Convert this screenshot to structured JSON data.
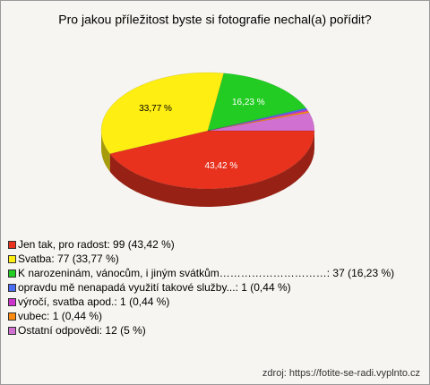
{
  "chart_data": {
    "type": "pie",
    "title": "Pro jakou příležitost byste si fotografie nechal(a) pořídit?",
    "categories": [
      "Jen tak, pro radost: 99 (43,42 %)",
      "Svatba: 77 (33,77 %)",
      "K narozeninám, vánocům, i jiným svátkům…………………………: 37 (16,23 %)",
      "opravdu mě nenapadá využití takové služby...: 1 (0,44 %)",
      "výročí, svatba apod.: 1 (0,44 %)",
      "vubec: 1 (0,44 %)",
      "Ostatní odpovědi: 12 (5 %)"
    ],
    "values": [
      43.42,
      33.77,
      16.23,
      0.44,
      0.44,
      0.44,
      5
    ],
    "value_labels": [
      "43,42 %",
      "33,77 %",
      "16,23 %",
      null,
      null,
      null,
      null
    ],
    "colors": [
      "#e8321e",
      "#ffee11",
      "#22cc22",
      "#4a6cf0",
      "#cc33cc",
      "#ff8a10",
      "#d070d0"
    ],
    "source": "zdroj: https://fotite-se-radi.vyplnto.cz"
  }
}
